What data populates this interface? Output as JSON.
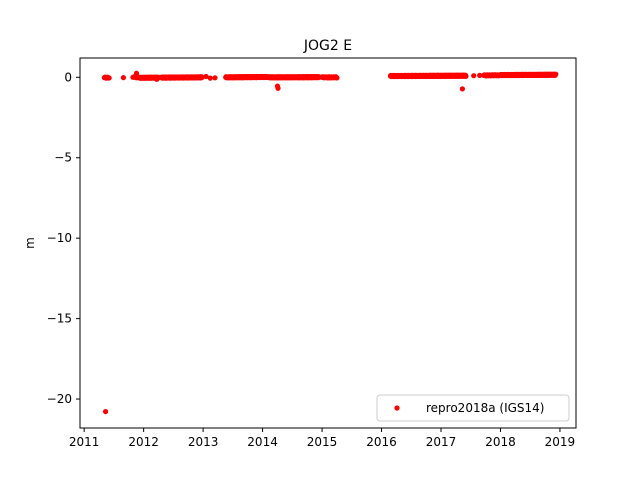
{
  "chart_data": {
    "type": "scatter",
    "title": "JOG2 E",
    "ylabel": "m",
    "xlabel": "",
    "xlim": [
      2010.93,
      2019.27
    ],
    "ylim": [
      -21.8,
      1.2
    ],
    "grid": false,
    "legend_position": "lower right",
    "x_ticks": [
      {
        "value": 2011,
        "label": "2011"
      },
      {
        "value": 2012,
        "label": "2012"
      },
      {
        "value": 2013,
        "label": "2013"
      },
      {
        "value": 2014,
        "label": "2014"
      },
      {
        "value": 2015,
        "label": "2015"
      },
      {
        "value": 2016,
        "label": "2016"
      },
      {
        "value": 2017,
        "label": "2017"
      },
      {
        "value": 2018,
        "label": "2018"
      },
      {
        "value": 2019,
        "label": "2019"
      }
    ],
    "y_ticks": [
      {
        "value": 0,
        "label": "0"
      },
      {
        "value": -5,
        "label": "−5"
      },
      {
        "value": -10,
        "label": "−10"
      },
      {
        "value": -15,
        "label": "−15"
      },
      {
        "value": -20,
        "label": "−20"
      }
    ],
    "series": [
      {
        "name": "repro2018a (IGS14)",
        "color": "#ff0000",
        "marker": "circle",
        "segments": [
          {
            "x_start": 2011.34,
            "x_end": 2011.42,
            "step": 0.012,
            "y_start": -0.02,
            "y_end": -0.02
          },
          {
            "x_start": 2011.82,
            "x_end": 2011.9,
            "step": 0.02,
            "y_start": 0.0,
            "y_end": 0.0
          },
          {
            "x_start": 2011.92,
            "x_end": 2012.25,
            "step": 0.008,
            "y_start": -0.03,
            "y_end": -0.02
          },
          {
            "x_start": 2012.3,
            "x_end": 2012.98,
            "step": 0.006,
            "y_start": -0.02,
            "y_end": 0.0
          },
          {
            "x_start": 2013.38,
            "x_end": 2014.08,
            "step": 0.006,
            "y_start": 0.0,
            "y_end": 0.02
          },
          {
            "x_start": 2014.1,
            "x_end": 2014.95,
            "step": 0.006,
            "y_start": 0.0,
            "y_end": 0.01
          },
          {
            "x_start": 2015.0,
            "x_end": 2015.25,
            "step": 0.01,
            "y_start": 0.0,
            "y_end": 0.0
          },
          {
            "x_start": 2016.15,
            "x_end": 2017.42,
            "step": 0.005,
            "y_start": 0.08,
            "y_end": 0.1
          },
          {
            "x_start": 2017.72,
            "x_end": 2017.98,
            "step": 0.012,
            "y_start": 0.12,
            "y_end": 0.13
          },
          {
            "x_start": 2018.0,
            "x_end": 2018.93,
            "step": 0.005,
            "y_start": 0.14,
            "y_end": 0.16
          }
        ],
        "points": [
          {
            "x": 2011.36,
            "y": -20.78
          },
          {
            "x": 2011.66,
            "y": -0.02
          },
          {
            "x": 2011.88,
            "y": 0.25
          },
          {
            "x": 2012.22,
            "y": -0.12
          },
          {
            "x": 2013.05,
            "y": 0.05
          },
          {
            "x": 2013.12,
            "y": -0.05
          },
          {
            "x": 2013.2,
            "y": -0.03
          },
          {
            "x": 2014.25,
            "y": -0.55
          },
          {
            "x": 2014.26,
            "y": -0.68
          },
          {
            "x": 2017.36,
            "y": -0.72
          },
          {
            "x": 2017.55,
            "y": 0.1
          },
          {
            "x": 2017.65,
            "y": 0.12
          }
        ]
      }
    ]
  }
}
